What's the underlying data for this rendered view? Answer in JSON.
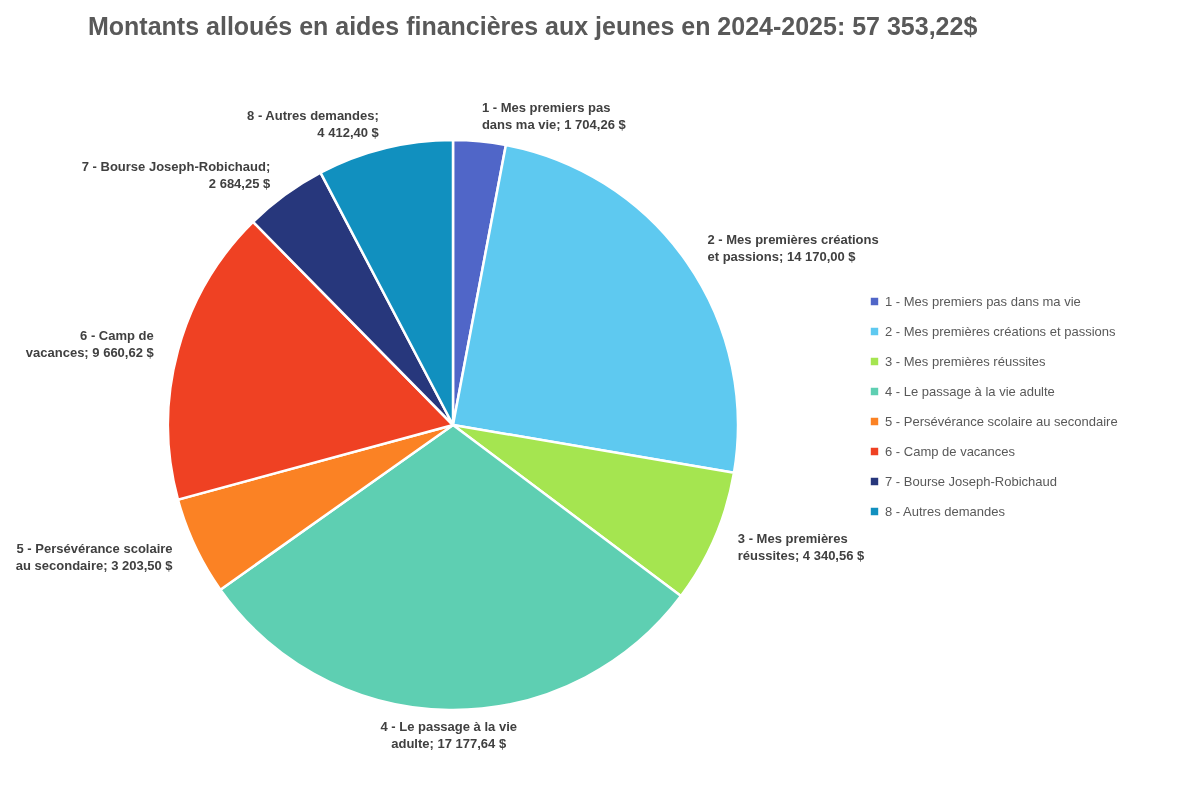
{
  "chart_data": {
    "type": "pie",
    "title": "Montants alloués en aides financières aux jeunes en 2024-2025: 57 353,22$",
    "categories": [
      "1 - Mes premiers pas dans ma vie",
      "2 - Mes premières créations et passions",
      "3 - Mes premières réussites",
      "4 - Le passage à la vie adulte",
      "5 - Persévérance scolaire au secondaire",
      "6 - Camp de vacances",
      "7 - Bourse Joseph-Robichaud",
      "8 - Autres demandes"
    ],
    "values": [
      1704.26,
      14170.0,
      4340.56,
      17177.64,
      3203.5,
      9660.62,
      2684.25,
      4412.4
    ],
    "value_labels": [
      "1 - Mes premiers pas dans ma vie; 1 704,26 $",
      "2 - Mes premières créations et passions; 14 170,00 $",
      "3 - Mes premières réussites; 4 340,56 $",
      "4 - Le passage à la vie adulte; 17 177,64 $",
      "5 - Persévérance scolaire au secondaire; 3 203,50 $",
      "6 - Camp de vacances; 9 660,62 $",
      "7 - Bourse Joseph-Robichaud; 2 684,25 $",
      "8 - Autres demandes; 4 412,40 $"
    ],
    "colors": [
      "#5066c8",
      "#5ec9f0",
      "#a5e550",
      "#5ecfb2",
      "#fb8224",
      "#ef4123",
      "#27377c",
      "#1190bf"
    ],
    "legend": "right"
  }
}
